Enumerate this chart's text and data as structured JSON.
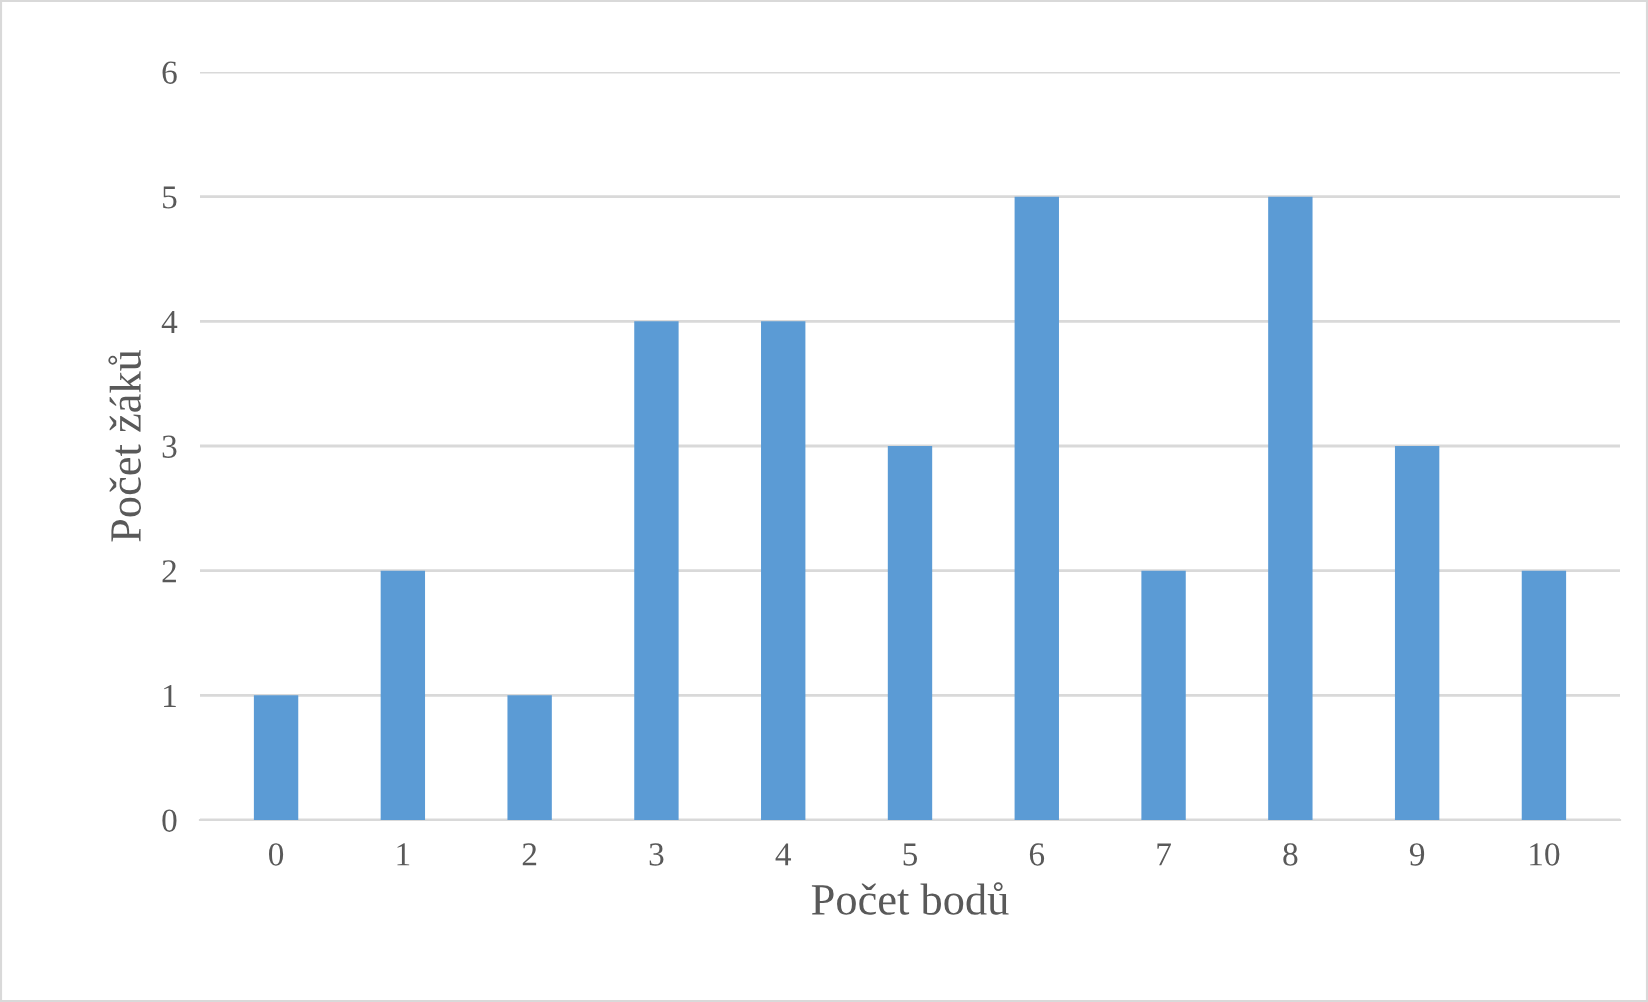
{
  "chart_data": {
    "type": "bar",
    "xlabel": "Počet bodů",
    "ylabel": "Počet žáků",
    "categories": [
      "0",
      "1",
      "2",
      "3",
      "4",
      "5",
      "6",
      "7",
      "8",
      "9",
      "10"
    ],
    "values": [
      1,
      2,
      1,
      4,
      4,
      3,
      5,
      2,
      5,
      3,
      2
    ],
    "color": "#5b9bd5",
    "ylim": [
      0,
      6
    ],
    "yticks": [
      0,
      1,
      2,
      3,
      4,
      5,
      6
    ],
    "grid": "y",
    "legend": false
  }
}
